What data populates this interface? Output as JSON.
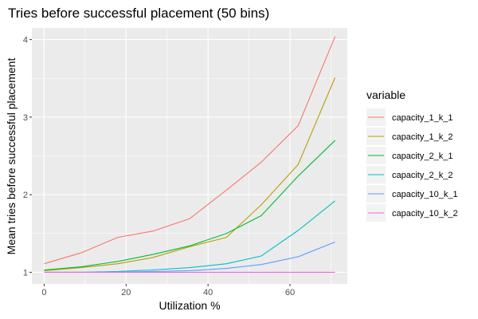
{
  "chart_data": {
    "type": "line",
    "title": "Tries before successful placement (50 bins)",
    "xlabel": "Utilization %",
    "ylabel": "Mean tries before successful placement",
    "xlim": [
      -3,
      74
    ],
    "ylim": [
      0.85,
      4.15
    ],
    "xticks": [
      0,
      20,
      40,
      60
    ],
    "yticks": [
      1,
      2,
      3,
      4
    ],
    "xtick_labels": [
      "0",
      "20",
      "40",
      "60"
    ],
    "ytick_labels": [
      "1",
      "2",
      "3",
      "4"
    ],
    "grid": true,
    "legend_title": "variable",
    "legend_position": "right",
    "x": [
      0,
      9,
      18,
      26.5,
      35.5,
      44.5,
      53,
      62,
      71
    ],
    "series": [
      {
        "name": "capacity_1_k_1",
        "color": "#F8766D",
        "values": [
          1.11,
          1.25,
          1.45,
          1.53,
          1.69,
          2.06,
          2.42,
          2.89,
          4.04
        ]
      },
      {
        "name": "capacity_1_k_2",
        "color": "#B79F00",
        "values": [
          1.02,
          1.06,
          1.11,
          1.19,
          1.33,
          1.45,
          1.87,
          2.39,
          3.51
        ]
      },
      {
        "name": "capacity_2_k_1",
        "color": "#00BA38",
        "values": [
          1.03,
          1.07,
          1.14,
          1.23,
          1.34,
          1.5,
          1.73,
          2.24,
          2.7
        ]
      },
      {
        "name": "capacity_2_k_2",
        "color": "#00BFC4",
        "values": [
          1.0,
          1.0,
          1.01,
          1.03,
          1.06,
          1.11,
          1.21,
          1.54,
          1.92
        ]
      },
      {
        "name": "capacity_10_k_1",
        "color": "#619CFF",
        "values": [
          1.0,
          1.0,
          1.0,
          1.01,
          1.02,
          1.05,
          1.1,
          1.2,
          1.39
        ]
      },
      {
        "name": "capacity_10_k_2",
        "color": "#F564E3",
        "values": [
          1.0,
          1.0,
          1.0,
          1.0,
          1.0,
          1.0,
          1.0,
          1.0,
          1.0
        ]
      }
    ]
  }
}
